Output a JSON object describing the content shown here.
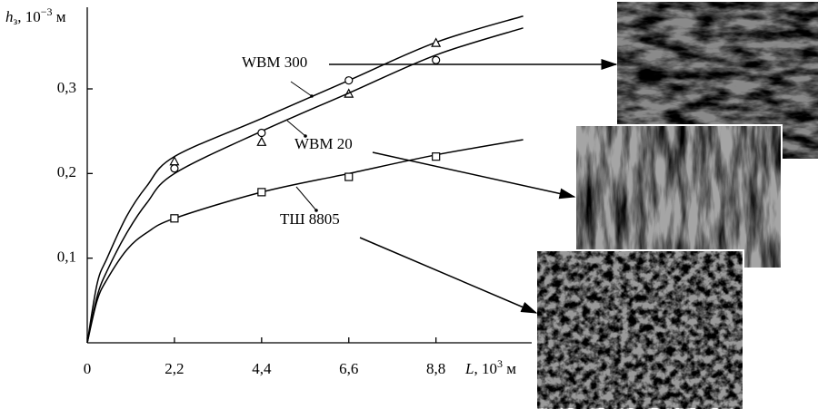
{
  "chart_data": {
    "type": "scatter-fit",
    "ylabel": {
      "symbol": "h",
      "subscript": "з",
      "unit": ", 10",
      "exponent": "−3",
      "suffix": " м"
    },
    "xlabel": {
      "symbol": "L",
      "unit": ", 10",
      "exponent": "3",
      "suffix": " м"
    },
    "xlim": [
      0,
      11
    ],
    "ylim": [
      0,
      0.39
    ],
    "xticks": [
      0,
      {
        "value": 2.2,
        "label": "2,2"
      },
      {
        "value": 4.4,
        "label": "4,4"
      },
      {
        "value": 6.6,
        "label": "6,6"
      },
      {
        "value": 8.8,
        "label": "8,8"
      }
    ],
    "yticks": [
      {
        "value": 0.1,
        "label": "0,1"
      },
      {
        "value": 0.2,
        "label": "0,2"
      },
      {
        "value": 0.3,
        "label": "0,3"
      }
    ],
    "series": [
      {
        "name": "WBM 300",
        "marker": "triangle",
        "color": "#000",
        "points": {
          "x": [
            2.2,
            4.4,
            6.6,
            8.8
          ],
          "values": [
            0.214,
            0.237,
            0.294,
            0.354
          ]
        },
        "curve": {
          "x": [
            0,
            0.25,
            0.5,
            1,
            1.5,
            2.2,
            4.4,
            6.6,
            8.8,
            11
          ],
          "values": [
            0,
            0.07,
            0.1,
            0.15,
            0.185,
            0.22,
            0.265,
            0.31,
            0.355,
            0.386
          ]
        }
      },
      {
        "name": "WBM 20",
        "marker": "circle",
        "color": "#000",
        "points": {
          "x": [
            2.2,
            4.4,
            6.6,
            8.8
          ],
          "values": [
            0.206,
            0.248,
            0.31,
            0.334
          ]
        },
        "curve": {
          "x": [
            0,
            0.25,
            0.5,
            1,
            1.5,
            2.2,
            4.4,
            6.6,
            8.8,
            11
          ],
          "values": [
            0,
            0.055,
            0.085,
            0.13,
            0.165,
            0.2,
            0.25,
            0.295,
            0.34,
            0.372
          ]
        }
      },
      {
        "name": "ТШ 8805",
        "marker": "square",
        "color": "#000",
        "points": {
          "x": [
            2.2,
            4.4,
            6.6,
            8.8
          ],
          "values": [
            0.147,
            0.178,
            0.196,
            0.22
          ]
        },
        "curve": {
          "x": [
            0,
            0.25,
            0.5,
            1,
            1.5,
            2.2,
            4.4,
            6.6,
            8.8,
            11
          ],
          "values": [
            0,
            0.05,
            0.075,
            0.11,
            0.13,
            0.147,
            0.178,
            0.2,
            0.222,
            0.24
          ]
        }
      }
    ]
  }
}
